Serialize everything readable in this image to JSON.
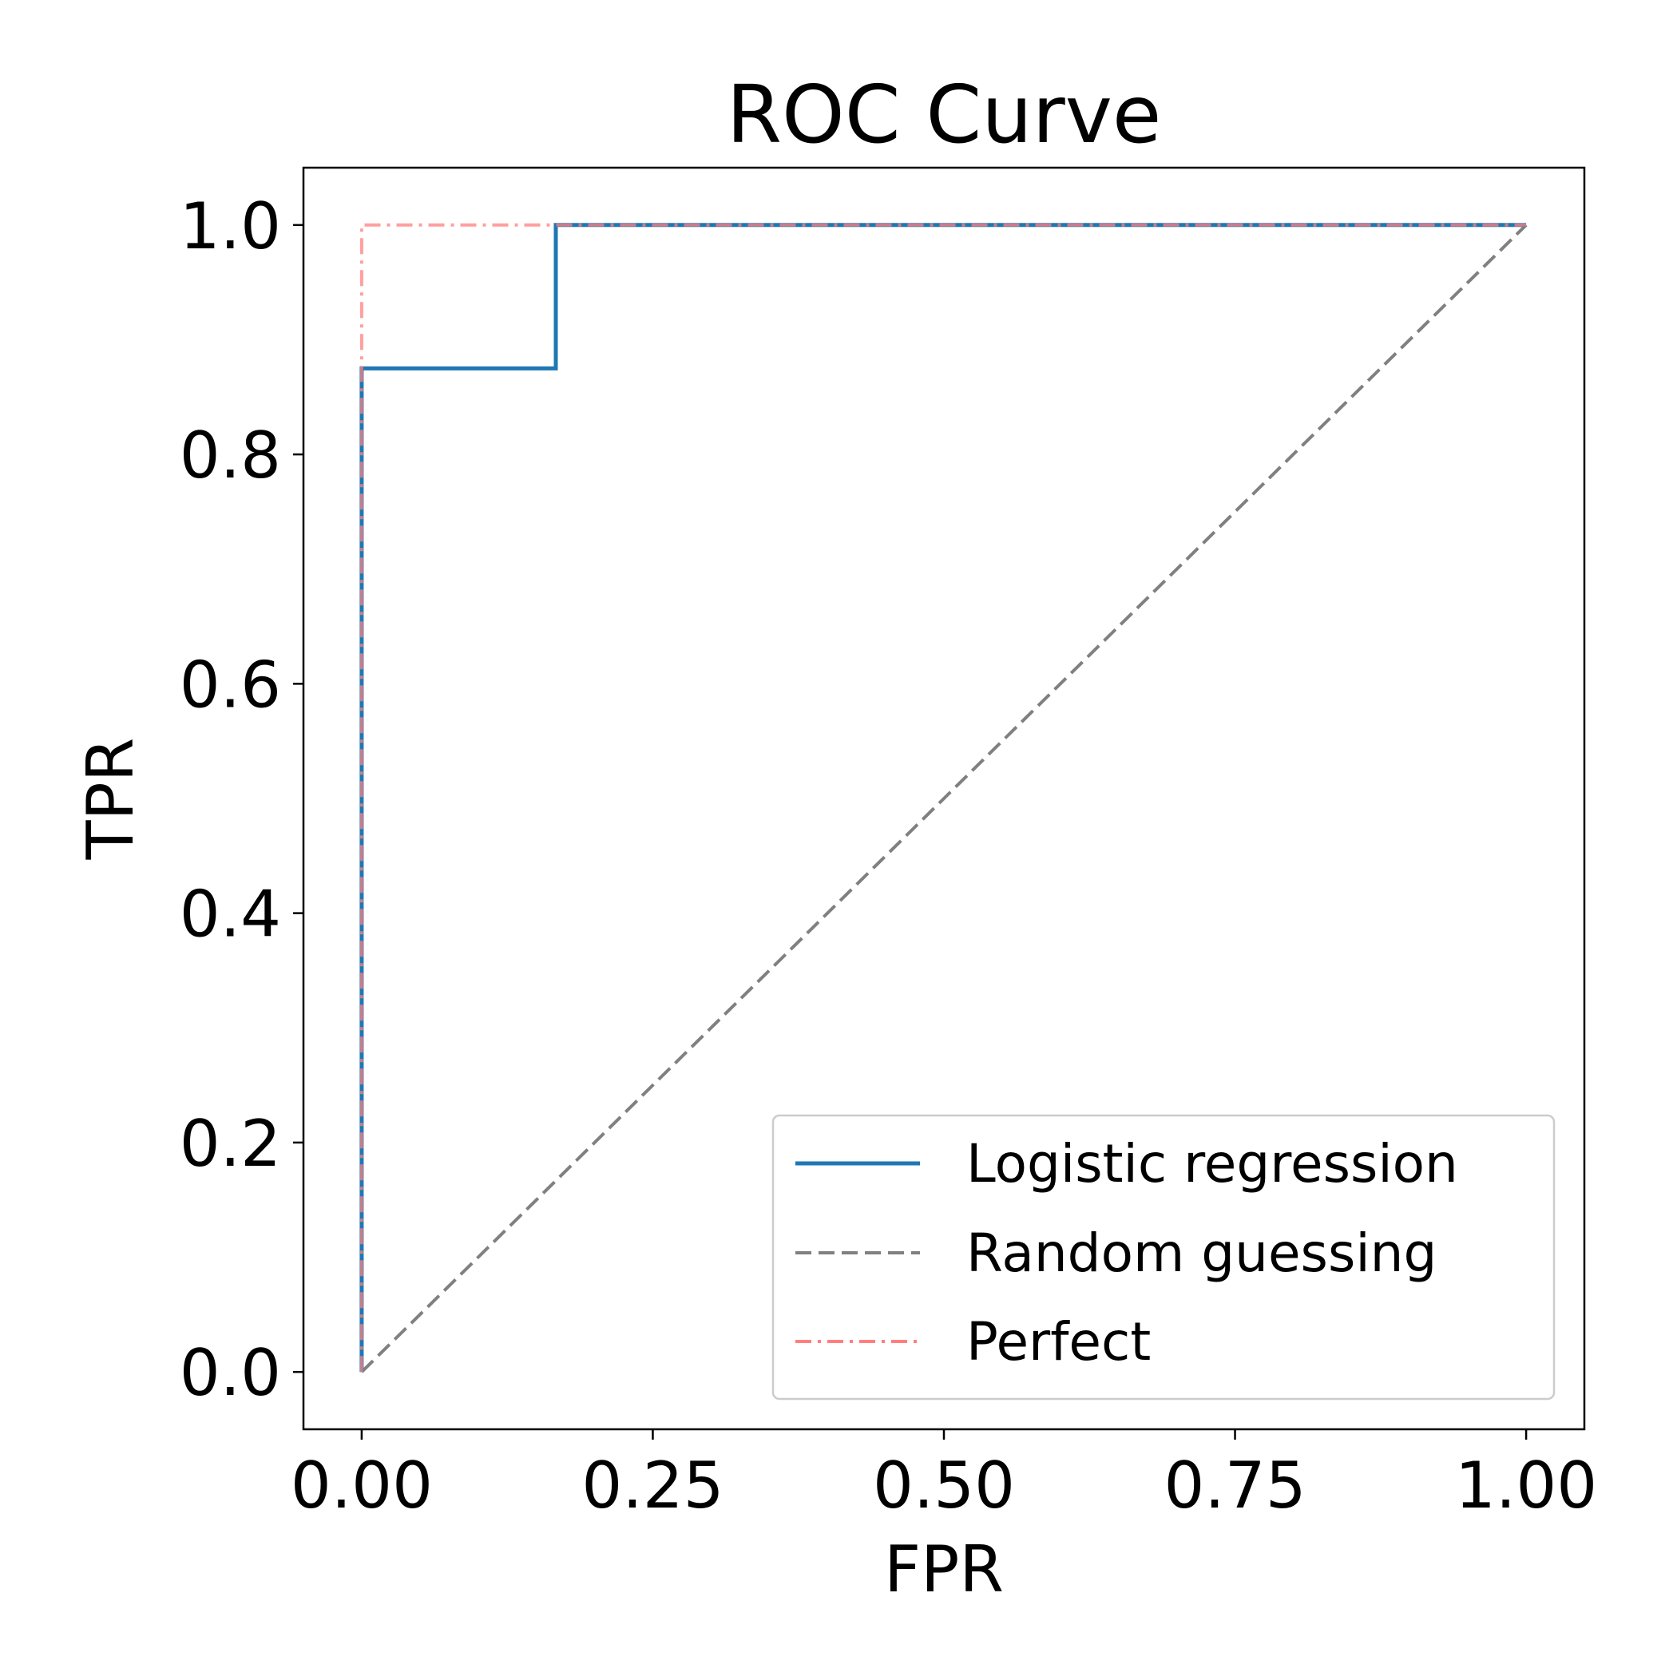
{
  "chart_data": {
    "type": "line",
    "title": "ROC Curve",
    "xlabel": "FPR",
    "ylabel": "TPR",
    "xlim": [
      -0.05,
      1.05
    ],
    "ylim": [
      -0.05,
      1.05
    ],
    "xticks": [
      0.0,
      0.25,
      0.5,
      0.75,
      1.0
    ],
    "xtick_labels": [
      "0.00",
      "0.25",
      "0.50",
      "0.75",
      "1.00"
    ],
    "yticks": [
      0.0,
      0.2,
      0.4,
      0.6,
      0.8,
      1.0
    ],
    "ytick_labels": [
      "0.0",
      "0.2",
      "0.4",
      "0.6",
      "0.8",
      "1.0"
    ],
    "grid": false,
    "legend_position": "lower-right",
    "series": [
      {
        "name": "Logistic regression",
        "color": "#1f77b4",
        "style": "solid",
        "x": [
          0.0,
          0.0,
          0.0,
          0.1667,
          0.1667,
          1.0
        ],
        "y": [
          0.0,
          0.125,
          0.875,
          0.875,
          1.0,
          1.0
        ]
      },
      {
        "name": "Random guessing",
        "color": "#808080",
        "style": "dashed",
        "x": [
          0.0,
          1.0
        ],
        "y": [
          0.0,
          1.0
        ]
      },
      {
        "name": "Perfect",
        "color": "#ff7f7f",
        "style": "dashdot",
        "x": [
          0.0,
          0.0,
          1.0
        ],
        "y": [
          0.0,
          1.0,
          1.0
        ]
      }
    ]
  }
}
